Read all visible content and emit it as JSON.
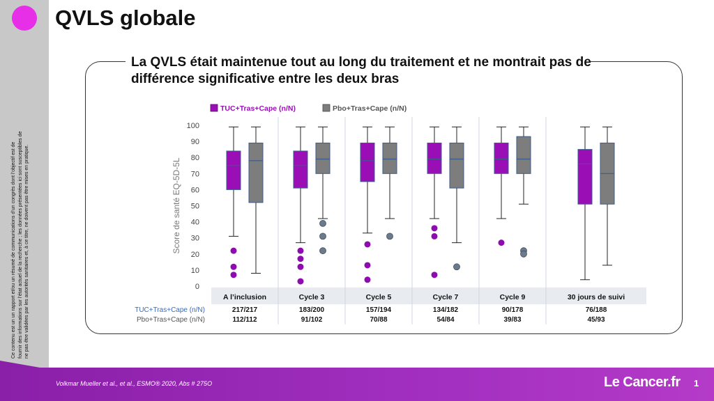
{
  "page": {
    "title": "QVLS globale",
    "subtitle": "La QVLS était maintenue tout au long du traitement et ne montrait pas de différence significative entre les deux bras",
    "disclaimer": "Ce contenu est un un rapport et/ou un résumé de communications d’un congrès dont l’objectif est de fournir des informations sur l’état actuel de la recherche ; les données présentées ici sont susceptibles de ne pas être validées par les autorités sanitaires et, à ce titre, ne doivent pas être mises en pratique.",
    "reference": "Volkmar Mueller et al., et al., ESMO® 2020, Abs # 275O",
    "logo": "Le Cancer.fr",
    "page_number": "1"
  },
  "colors": {
    "tuc": "#9a0fb5",
    "pbo": "#7d7d7d",
    "accent": "#e62fe6",
    "footer": "#a22fc0",
    "axis_band": "#e8ecf0"
  },
  "chart_data": {
    "type": "box",
    "ylabel": "Score de santé EQ-5D-5L",
    "ylim": [
      0,
      100
    ],
    "yticks": [
      0,
      10,
      20,
      30,
      40,
      50,
      60,
      70,
      80,
      90,
      100
    ],
    "categories": [
      "A l’inclusion",
      "Cycle 3",
      "Cycle 5",
      "Cycle 7",
      "Cycle 9",
      "30 jours de suivi"
    ],
    "series": [
      {
        "name": "TUC+Tras+Cape (n/N)",
        "counts": [
          "217/217",
          "183/200",
          "157/194",
          "134/182",
          "90/178",
          "76/188"
        ],
        "boxes": [
          {
            "min": 31,
            "q1": 60,
            "median": 75,
            "q3": 84,
            "max": 99,
            "outliers": [
              22,
              12,
              7
            ]
          },
          {
            "min": 27,
            "q1": 61,
            "median": 75,
            "q3": 84,
            "max": 99,
            "outliers": [
              22,
              17,
              12,
              3
            ]
          },
          {
            "min": 33,
            "q1": 65,
            "median": 78,
            "q3": 89,
            "max": 99,
            "outliers": [
              26,
              13,
              4
            ]
          },
          {
            "min": 42,
            "q1": 70,
            "median": 79,
            "q3": 89,
            "max": 99,
            "outliers": [
              36,
              31,
              7
            ]
          },
          {
            "min": 42,
            "q1": 70,
            "median": 79,
            "q3": 89,
            "max": 99,
            "outliers": [
              27
            ]
          },
          {
            "min": 4,
            "q1": 51,
            "median": 76,
            "q3": 85,
            "max": 99,
            "outliers": []
          }
        ]
      },
      {
        "name": "Pbo+Tras+Cape (n/N)",
        "counts": [
          "112/112",
          "91/102",
          "70/88",
          "54/84",
          "39/83",
          "45/93"
        ],
        "boxes": [
          {
            "min": 8,
            "q1": 52,
            "median": 78,
            "q3": 89,
            "max": 99,
            "outliers": []
          },
          {
            "min": 42,
            "q1": 70,
            "median": 79,
            "q3": 89,
            "max": 99,
            "outliers": [
              39,
              31,
              22
            ]
          },
          {
            "min": 42,
            "q1": 70,
            "median": 79,
            "q3": 89,
            "max": 99,
            "outliers": [
              31
            ]
          },
          {
            "min": 27,
            "q1": 61,
            "median": 79,
            "q3": 89,
            "max": 99,
            "outliers": [
              12
            ]
          },
          {
            "min": 51,
            "q1": 70,
            "median": 79,
            "q3": 93,
            "max": 99,
            "outliers": [
              22,
              20
            ]
          },
          {
            "min": 13,
            "q1": 51,
            "median": 70,
            "q3": 89,
            "max": 99,
            "outliers": []
          }
        ]
      }
    ]
  }
}
